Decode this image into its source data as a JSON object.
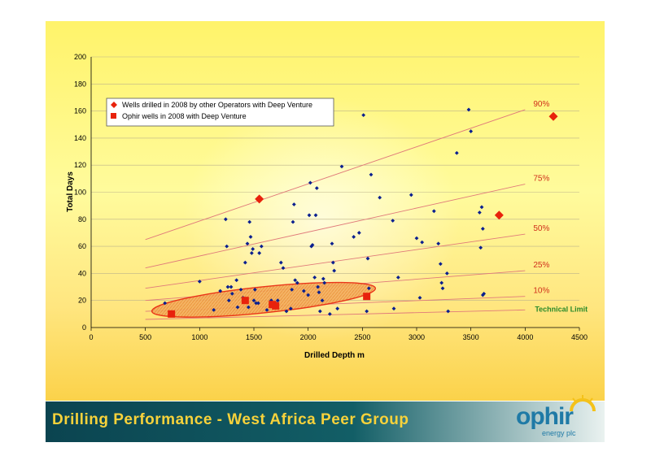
{
  "footer": {
    "title": "Drilling Performance - West Africa Peer Group"
  },
  "logo": {
    "word": "ophir",
    "subtitle": "energy plc"
  },
  "colors": {
    "operators": "#0a1f8f",
    "ophir": "#e8220c",
    "ellipse": "#f08a2b",
    "trend": "#e07a7a",
    "technical_limit": "#2a8a2a",
    "footer_bg": "#0b4450",
    "footer_text": "#f7d23b"
  },
  "chart_data": {
    "type": "scatter",
    "xlabel": "Drilled Depth m",
    "ylabel": "Total Days",
    "xlim": [
      0,
      4500
    ],
    "ylim": [
      0,
      200
    ],
    "xticks": [
      0,
      500,
      1000,
      1500,
      2000,
      2500,
      3000,
      3500,
      4000,
      4500
    ],
    "yticks": [
      0,
      20,
      40,
      60,
      80,
      100,
      120,
      140,
      160,
      180,
      200
    ],
    "grid": "horizontal",
    "legend_position": "top-left",
    "series": [
      {
        "name": "Wells drilled in 2008 by other Operators with Deep Venture",
        "marker": "diamond",
        "points": [
          [
            680,
            18
          ],
          [
            1000,
            34
          ],
          [
            1130,
            13
          ],
          [
            1190,
            27
          ],
          [
            1240,
            80
          ],
          [
            1250,
            60
          ],
          [
            1260,
            30
          ],
          [
            1270,
            20
          ],
          [
            1290,
            30
          ],
          [
            1300,
            25
          ],
          [
            1340,
            35
          ],
          [
            1350,
            15
          ],
          [
            1380,
            28
          ],
          [
            1400,
            22
          ],
          [
            1420,
            48
          ],
          [
            1440,
            62
          ],
          [
            1450,
            15
          ],
          [
            1460,
            78
          ],
          [
            1470,
            67
          ],
          [
            1480,
            55
          ],
          [
            1490,
            58
          ],
          [
            1500,
            20
          ],
          [
            1510,
            28
          ],
          [
            1520,
            18
          ],
          [
            1540,
            18
          ],
          [
            1550,
            55
          ],
          [
            1570,
            60
          ],
          [
            1620,
            13
          ],
          [
            1660,
            20
          ],
          [
            1700,
            18
          ],
          [
            1720,
            20
          ],
          [
            1750,
            48
          ],
          [
            1770,
            44
          ],
          [
            1800,
            12
          ],
          [
            1840,
            14
          ],
          [
            1850,
            28
          ],
          [
            1860,
            78
          ],
          [
            1870,
            91
          ],
          [
            1880,
            35
          ],
          [
            1900,
            33
          ],
          [
            1960,
            27
          ],
          [
            2000,
            24
          ],
          [
            2010,
            83
          ],
          [
            2020,
            107
          ],
          [
            2030,
            60
          ],
          [
            2040,
            61
          ],
          [
            2060,
            37
          ],
          [
            2070,
            83
          ],
          [
            2080,
            103
          ],
          [
            2090,
            30
          ],
          [
            2100,
            26
          ],
          [
            2110,
            12
          ],
          [
            2130,
            20
          ],
          [
            2140,
            36
          ],
          [
            2150,
            33
          ],
          [
            2200,
            10
          ],
          [
            2220,
            62
          ],
          [
            2230,
            48
          ],
          [
            2240,
            42
          ],
          [
            2270,
            14
          ],
          [
            2310,
            119
          ],
          [
            2420,
            67
          ],
          [
            2470,
            70
          ],
          [
            2510,
            157
          ],
          [
            2540,
            12
          ],
          [
            2550,
            51
          ],
          [
            2560,
            29
          ],
          [
            2580,
            113
          ],
          [
            2660,
            96
          ],
          [
            2780,
            79
          ],
          [
            2790,
            14
          ],
          [
            2830,
            37
          ],
          [
            2950,
            98
          ],
          [
            3000,
            66
          ],
          [
            3030,
            22
          ],
          [
            3050,
            63
          ],
          [
            3160,
            86
          ],
          [
            3200,
            62
          ],
          [
            3220,
            47
          ],
          [
            3230,
            33
          ],
          [
            3240,
            29
          ],
          [
            3280,
            40
          ],
          [
            3290,
            12
          ],
          [
            3370,
            129
          ],
          [
            3480,
            161
          ],
          [
            3500,
            145
          ],
          [
            3580,
            85
          ],
          [
            3590,
            59
          ],
          [
            3600,
            89
          ],
          [
            3610,
            73
          ],
          [
            3620,
            25
          ],
          [
            3610,
            24
          ]
        ]
      },
      {
        "name": "Ophir wells in 2008 with Deep Venture",
        "marker": "square",
        "points": [
          [
            740,
            10
          ],
          [
            1420,
            20
          ],
          [
            1670,
            17
          ],
          [
            1700,
            16
          ],
          [
            2540,
            23
          ]
        ]
      },
      {
        "name": "",
        "marker": "diamond-large",
        "points": [
          [
            1550,
            95
          ],
          [
            3760,
            83
          ],
          [
            4260,
            156
          ]
        ]
      }
    ],
    "trend_lines": [
      {
        "label": "90%",
        "from": [
          500,
          65
        ],
        "to": [
          4000,
          161
        ]
      },
      {
        "label": "75%",
        "from": [
          500,
          44
        ],
        "to": [
          4000,
          106
        ]
      },
      {
        "label": "50%",
        "from": [
          500,
          29
        ],
        "to": [
          4000,
          69
        ]
      },
      {
        "label": "25%",
        "from": [
          500,
          20
        ],
        "to": [
          4000,
          42
        ]
      },
      {
        "label": "10%",
        "from": [
          500,
          12
        ],
        "to": [
          4000,
          23
        ]
      },
      {
        "label": "Technical Limit",
        "from": [
          500,
          6
        ],
        "to": [
          4000,
          13
        ]
      }
    ]
  }
}
